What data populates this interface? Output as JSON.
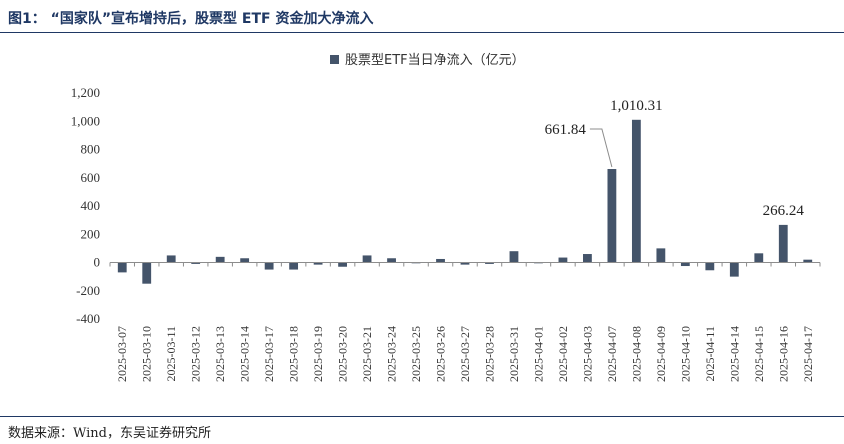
{
  "figure": {
    "title": "图1： “国家队”宣布增持后，股票型 ETF 资金加大净流入",
    "source": "数据来源：Wind，东吴证券研究所"
  },
  "chart_data": {
    "type": "bar",
    "categories": [
      "2025-03-07",
      "2025-03-10",
      "2025-03-11",
      "2025-03-12",
      "2025-03-13",
      "2025-03-14",
      "2025-03-17",
      "2025-03-18",
      "2025-03-19",
      "2025-03-20",
      "2025-03-21",
      "2025-03-24",
      "2025-03-25",
      "2025-03-26",
      "2025-03-27",
      "2025-03-28",
      "2025-03-31",
      "2025-04-01",
      "2025-04-02",
      "2025-04-03",
      "2025-04-07",
      "2025-04-08",
      "2025-04-09",
      "2025-04-10",
      "2025-04-11",
      "2025-04-14",
      "2025-04-15",
      "2025-04-16",
      "2025-04-17"
    ],
    "series": [
      {
        "name": "股票型ETF当日净流入（亿元）",
        "color": "#44546a",
        "values": [
          -70,
          -150,
          50,
          -10,
          40,
          30,
          -50,
          -50,
          -15,
          -30,
          50,
          30,
          -5,
          25,
          -15,
          -10,
          80,
          -5,
          35,
          60,
          661.84,
          1010.31,
          100,
          -25,
          -55,
          -100,
          65,
          266.24,
          20
        ]
      }
    ],
    "data_labels": [
      {
        "category": "2025-04-07",
        "text": "661.84"
      },
      {
        "category": "2025-04-08",
        "text": "1,010.31"
      },
      {
        "category": "2025-04-16",
        "text": "266.24"
      }
    ],
    "y_ticks": [
      "1,200",
      "1,000",
      "800",
      "600",
      "400",
      "200",
      "0",
      "-200",
      "-400"
    ],
    "ylim": [
      -400,
      1200
    ],
    "legend_position": "top-center",
    "grid": false
  }
}
